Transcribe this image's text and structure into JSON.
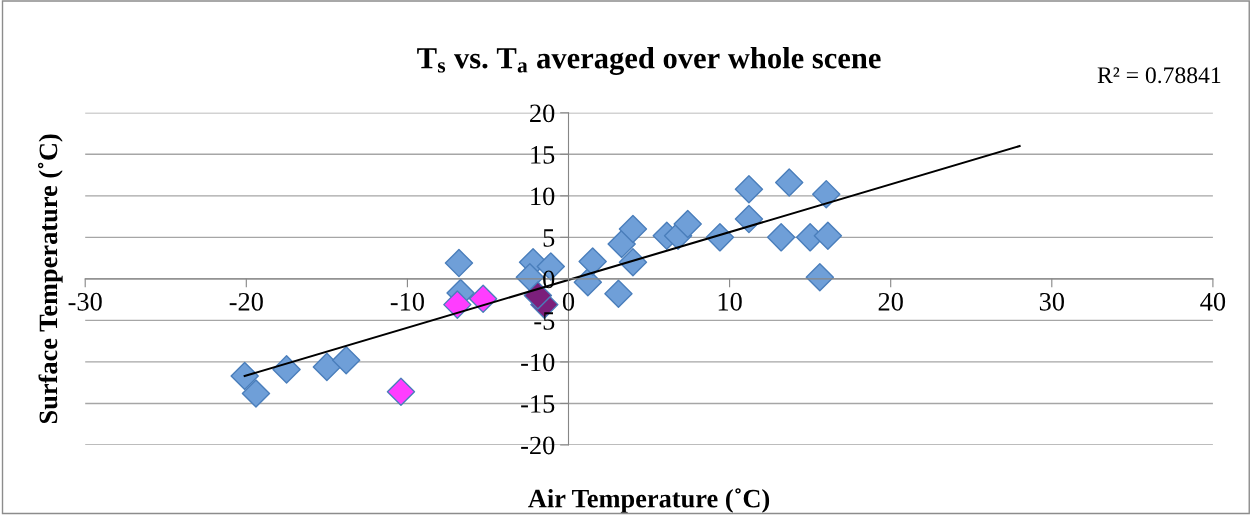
{
  "chart_data": {
    "type": "scatter",
    "title": "T$_{s}$ vs. T$_{a}$ averaged over whole scene",
    "xlabel": "Air Temperature (˚C)",
    "ylabel": "Surface Temperature (˚C)",
    "annotations": [
      "R² = 0.78841"
    ],
    "xlim": [
      -30,
      40
    ],
    "xticks": [
      -30,
      -20,
      -10,
      0,
      10,
      20,
      30,
      40
    ],
    "ylim": [
      -20,
      20
    ],
    "yticks": [
      -20,
      -15,
      -10,
      -5,
      0,
      5,
      10,
      15,
      20
    ],
    "grid": "y",
    "marker": "diamond",
    "series": [
      {
        "color": "#6f9fd8",
        "x": [
          -20.1,
          -19.4,
          -17.5,
          -15.0,
          -13.8,
          -6.8,
          -6.7,
          -2.2,
          -2.4,
          -1.1,
          1.2,
          1.5,
          null,
          3.1,
          3.3,
          4.0,
          4.0,
          6.1,
          6.8,
          7.4,
          9.4,
          11.2,
          11.2,
          13.2,
          13.7,
          15.0,
          15.6,
          16.0,
          16.1
        ],
        "values": [
          -11.7,
          -13.8,
          -10.9,
          -10.6,
          -9.8,
          1.9,
          -1.7,
          2.0,
          0.2,
          1.5,
          -0.4,
          2.1,
          null,
          -1.8,
          4.2,
          6.0,
          2.0,
          5.2,
          5.2,
          6.6,
          5.0,
          10.8,
          7.2,
          5.0,
          11.6,
          5.0,
          0.2,
          10.2,
          5.2
        ]
      },
      {
        "color": "#ff3dff",
        "x": [
          -6.9,
          -5.3,
          -10.4
        ],
        "values": [
          -3.1,
          -2.4,
          -13.6
        ]
      },
      {
        "color": "#7b1f7b",
        "x": [
          -1.5,
          -1.9
        ],
        "values": [
          -3.1,
          -2.0
        ]
      },
      {
        "type": "line",
        "color": "#000000",
        "marker": "none",
        "x": [
          -20.1,
          28.0
        ],
        "values": [
          -11.7,
          16.0
        ]
      }
    ]
  }
}
